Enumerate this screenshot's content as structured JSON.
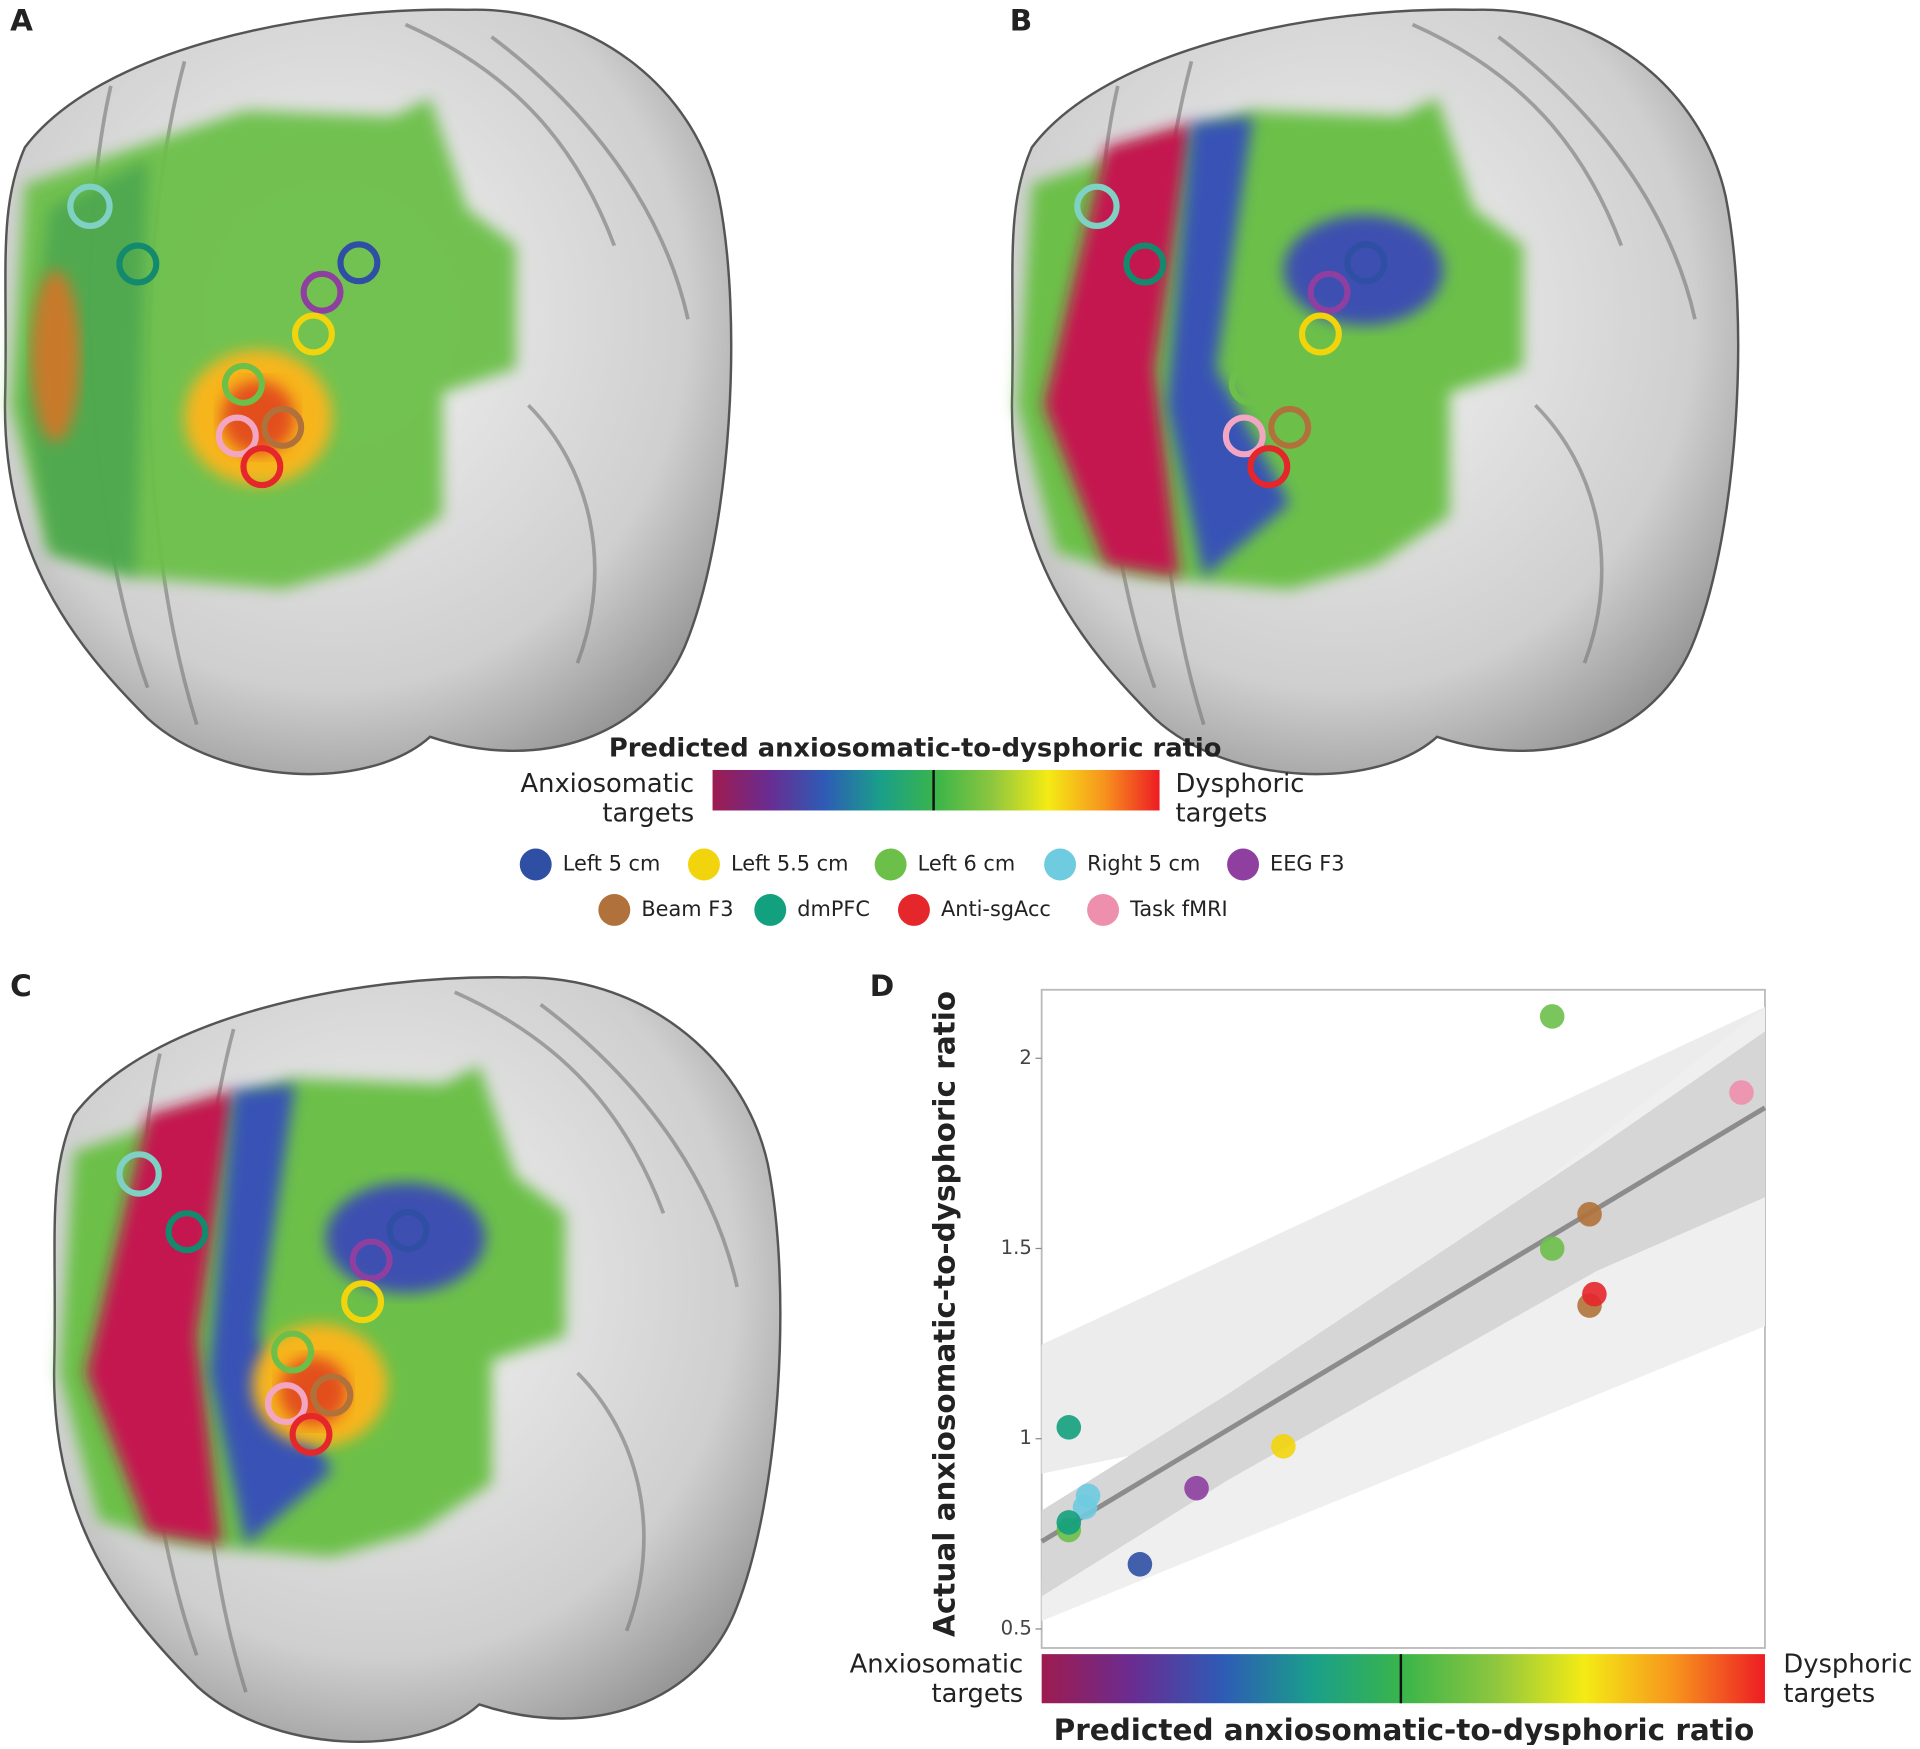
{
  "panels": {
    "a": "A",
    "b": "B",
    "c": "C",
    "d": "D"
  },
  "colorbar": {
    "title": "Predicted anxiosomatic-to-dysphoric ratio",
    "low": [
      "Anxiosomatic",
      "targets"
    ],
    "high": [
      "Dysphoric",
      "targets"
    ],
    "colors": [
      "#9e1b4f",
      "#6a2c91",
      "#2e5bb5",
      "#1a9f8a",
      "#3ab54a",
      "#8dc63f",
      "#f4eb15",
      "#f7941d",
      "#ed1c24"
    ]
  },
  "chart_data": {
    "type": "scatter",
    "ylabel": "Actual anxiosomatic-to-dysphoric ratio",
    "xlabel": "Predicted anxiosomatic-to-dysphoric ratio",
    "xlow": [
      "Anxiosomatic",
      "targets"
    ],
    "xhigh": [
      "Dysphoric",
      "targets"
    ],
    "xlim": [
      0.7,
      1.9
    ],
    "ylim": [
      0.45,
      2.18
    ],
    "yticks": [
      0.5,
      1,
      1.5,
      2
    ],
    "fit": {
      "x": [
        0.7,
        1.9
      ],
      "y": [
        0.73,
        1.87
      ]
    },
    "series": [
      {
        "name": "Left 5 cm",
        "color": "#2e4fa3",
        "x": [
          0.863
        ],
        "values": [
          0.67
        ]
      },
      {
        "name": "Left 5.5 cm",
        "color": "#f2d40c",
        "x": [
          1.101
        ],
        "values": [
          0.98
        ]
      },
      {
        "name": "Left 6 cm",
        "color": "#6cc04a",
        "x": [
          1.547,
          1.547,
          0.745
        ],
        "values": [
          2.11,
          1.5,
          0.76
        ]
      },
      {
        "name": "Right 5 cm",
        "color": "#6fcbe0",
        "x": [
          0.777,
          0.772
        ],
        "values": [
          0.85,
          0.82
        ]
      },
      {
        "name": "EEG F3",
        "color": "#8e3fa0",
        "x": [
          0.957
        ],
        "values": [
          0.87
        ]
      },
      {
        "name": "Beam F3",
        "color": "#b0723a",
        "x": [
          1.609,
          1.609
        ],
        "values": [
          1.59,
          1.35
        ]
      },
      {
        "name": "dmPFC",
        "color": "#13a07e",
        "x": [
          0.745,
          0.745
        ],
        "values": [
          1.03,
          0.78
        ]
      },
      {
        "name": "Anti-sgAcc",
        "color": "#e5262b",
        "x": [
          1.617
        ],
        "values": [
          1.38
        ]
      },
      {
        "name": "Task fMRI",
        "color": "#ef8fae",
        "x": [
          1.861
        ],
        "values": [
          1.91
        ]
      }
    ]
  }
}
